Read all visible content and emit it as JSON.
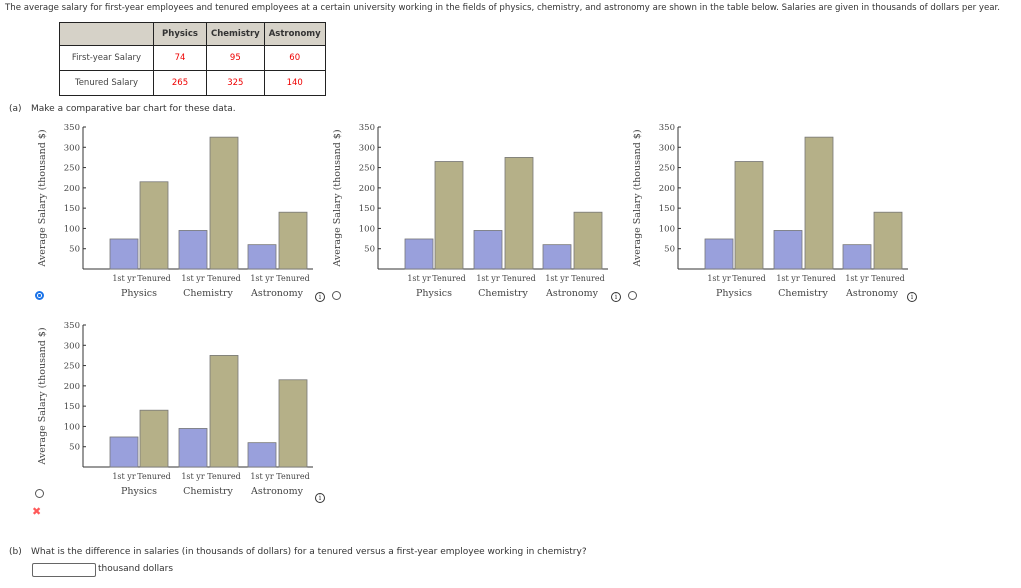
{
  "intro": "The average salary for first-year employees and tenured employees at a certain university working in the fields of physics, chemistry, and astronomy are shown in the table below. Salaries are given in thousands of dollars per year.",
  "table": {
    "headers": [
      "Physics",
      "Chemistry",
      "Astronomy"
    ],
    "rows": [
      {
        "label": "First-year Salary",
        "values": [
          "74",
          "95",
          "60"
        ]
      },
      {
        "label": "Tenured Salary",
        "values": [
          "265",
          "325",
          "140"
        ]
      }
    ]
  },
  "part_a": {
    "label": "(a)",
    "text": "Make a comparative bar chart for these data."
  },
  "part_b": {
    "label": "(b)",
    "text": "What is the difference in salaries (in thousands of dollars) for a tenured versus a first-year employee working in chemistry?",
    "input_value": "",
    "unit": "thousand dollars"
  },
  "info_glyph": "i",
  "wrong_mark": "✖",
  "colors": {
    "first_year": "#99a0dc",
    "tenured": "#b5b088",
    "selected": "#1a73e8",
    "wrong": "#ff5a5a"
  },
  "chart_data": [
    {
      "type": "bar",
      "ylabel": "Average Salary (thousand $)",
      "ylim": [
        0,
        350
      ],
      "yticks": [
        50,
        100,
        150,
        200,
        250,
        300,
        350
      ],
      "categories": [
        "Physics",
        "Chemistry",
        "Astronomy"
      ],
      "bar_labels": [
        "1st yr",
        "Tenured"
      ],
      "series": [
        {
          "name": "1st yr",
          "values": [
            74,
            95,
            60
          ]
        },
        {
          "name": "Tenured",
          "values": [
            215,
            325,
            140
          ]
        }
      ],
      "selected": true
    },
    {
      "type": "bar",
      "ylabel": "Average Salary (thousand $)",
      "ylim": [
        0,
        350
      ],
      "yticks": [
        50,
        100,
        150,
        200,
        250,
        300,
        350
      ],
      "categories": [
        "Physics",
        "Chemistry",
        "Astronomy"
      ],
      "bar_labels": [
        "1st yr",
        "Tenured"
      ],
      "series": [
        {
          "name": "1st yr",
          "values": [
            74,
            95,
            60
          ]
        },
        {
          "name": "Tenured",
          "values": [
            265,
            275,
            140
          ]
        }
      ],
      "selected": false
    },
    {
      "type": "bar",
      "ylabel": "Average Salary (thousand $)",
      "ylim": [
        0,
        350
      ],
      "yticks": [
        50,
        100,
        150,
        200,
        250,
        300,
        350
      ],
      "categories": [
        "Physics",
        "Chemistry",
        "Astronomy"
      ],
      "bar_labels": [
        "1st yr",
        "Tenured"
      ],
      "series": [
        {
          "name": "1st yr",
          "values": [
            74,
            95,
            60
          ]
        },
        {
          "name": "Tenured",
          "values": [
            265,
            325,
            140
          ]
        }
      ],
      "selected": false
    },
    {
      "type": "bar",
      "ylabel": "Average Salary (thousand $)",
      "ylim": [
        0,
        350
      ],
      "yticks": [
        50,
        100,
        150,
        200,
        250,
        300,
        350
      ],
      "categories": [
        "Physics",
        "Chemistry",
        "Astronomy"
      ],
      "bar_labels": [
        "1st yr",
        "Tenured"
      ],
      "series": [
        {
          "name": "1st yr",
          "values": [
            74,
            95,
            60
          ]
        },
        {
          "name": "Tenured",
          "values": [
            140,
            275,
            215
          ]
        }
      ],
      "selected": false
    }
  ]
}
